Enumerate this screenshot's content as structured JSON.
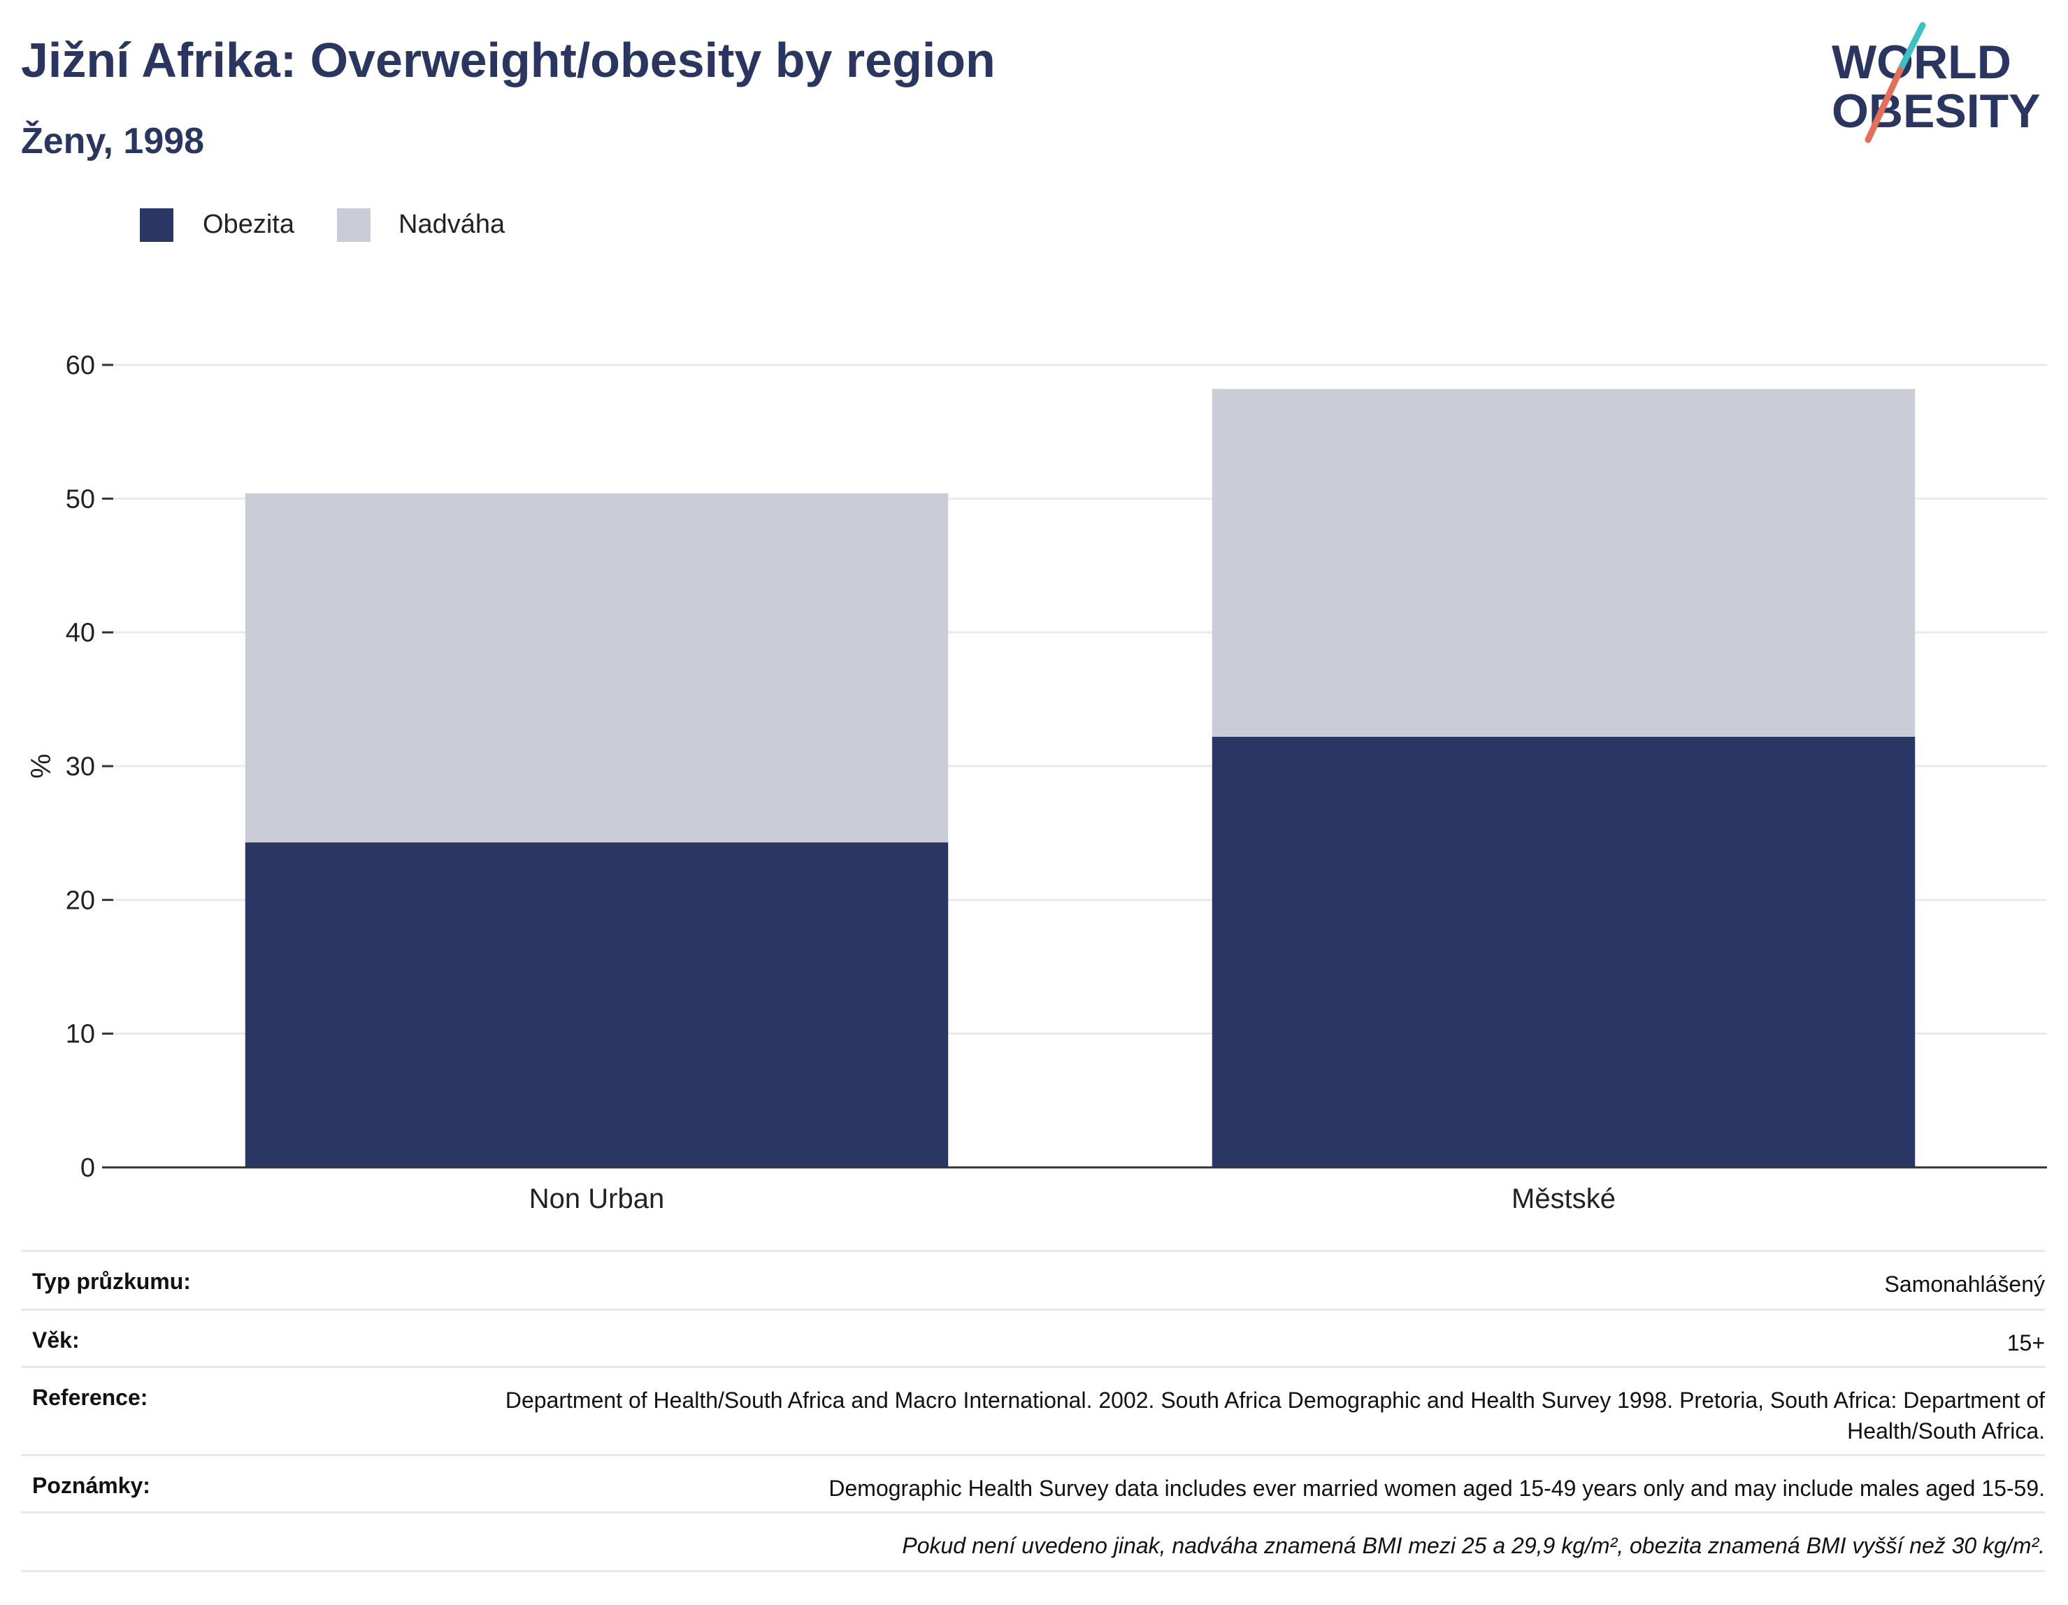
{
  "header": {
    "title": "Jižní Afrika: Overweight/obesity by region",
    "subtitle": "Ženy, 1998"
  },
  "logo": {
    "line1": "WORLD",
    "line2": "OBESITY"
  },
  "colors": {
    "obesity": "#2a3764",
    "overweight": "#cacdd8",
    "title": "#2a365f",
    "grid": "#e9eaf0",
    "axis": "#333333"
  },
  "chart_data": {
    "type": "bar",
    "stacked": true,
    "categories": [
      "Non Urban",
      "Městské"
    ],
    "series": [
      {
        "name": "Obezita",
        "values": [
          24.3,
          32.2
        ]
      },
      {
        "name": "Nadváha",
        "values": [
          26.1,
          26.0
        ]
      }
    ],
    "ylabel": "%",
    "ylim": [
      0,
      60
    ],
    "yticks": [
      "0",
      "10",
      "20",
      "30",
      "40",
      "50",
      "60"
    ],
    "grid": true,
    "legend_position": "top-left"
  },
  "meta": {
    "rows": [
      {
        "key": "Typ průzkumu:",
        "value": "Samonahlášený"
      },
      {
        "key": "Věk:",
        "value": "15+"
      },
      {
        "key": "Reference:",
        "value": "Department of Health/South Africa and Macro International. 2002. South Africa Demographic and Health Survey 1998. Pretoria, South Africa: Department of Health/South Africa."
      },
      {
        "key": "Poznámky:",
        "value": "Demographic Health Survey data includes ever married women aged 15-49 years only and may include males aged 15-59."
      }
    ],
    "footnote": "Pokud není uvedeno jinak, nadváha znamená BMI mezi 25 a 29,9 kg/m², obezita znamená BMI vyšší než 30 kg/m²."
  }
}
